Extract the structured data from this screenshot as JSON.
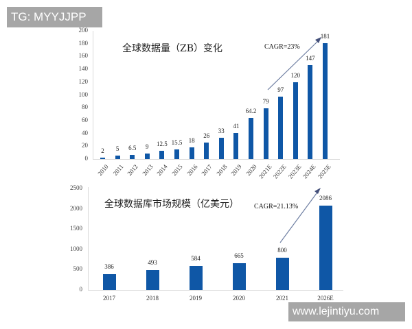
{
  "watermarks": {
    "top_left": "TG: MYYJJPP",
    "bottom_right": "www.lejintiyu.com"
  },
  "colors": {
    "bar": "#0f57a6",
    "arrow": "#6f7fa3",
    "watermark_bg": "#a6a6a6"
  },
  "top_chart": {
    "title": "全球数据量（ZB）变化",
    "cagr": "CAGR=23%",
    "yticks": [
      "200",
      "180",
      "160",
      "140",
      "120",
      "100",
      "80",
      "60",
      "40",
      "20",
      "0"
    ]
  },
  "bottom_chart": {
    "title": "全球数据库市场规模（亿美元）",
    "cagr": "CAGR=21.13%",
    "yticks": [
      "2500",
      "2000",
      "1500",
      "1000",
      "500",
      "0"
    ]
  },
  "chart_data": [
    {
      "type": "bar",
      "title": "全球数据量（ZB）变化",
      "annotation": "CAGR=23%",
      "categories": [
        "2010",
        "2011",
        "2012",
        "2013",
        "2014",
        "2015",
        "2016",
        "2017",
        "2018",
        "2019",
        "2020",
        "2021E",
        "2022E",
        "2023E",
        "2024E",
        "2025E"
      ],
      "values": [
        2,
        5,
        6.5,
        9,
        12.5,
        15.5,
        18,
        26,
        33,
        41,
        64.2,
        79,
        97,
        120,
        147,
        181
      ],
      "labels": [
        "2",
        "5",
        "6.5",
        "9",
        "12.5",
        "15.5",
        "18",
        "26",
        "33",
        "41",
        "64.2",
        "79",
        "97",
        "120",
        "147",
        "181"
      ],
      "xlabel": "",
      "ylabel": "",
      "ylim": [
        0,
        200
      ],
      "yticks_step": 20,
      "grid": false,
      "legend": null
    },
    {
      "type": "bar",
      "title": "全球数据库市场规模（亿美元）",
      "annotation": "CAGR=21.13%",
      "categories": [
        "2017",
        "2018",
        "2019",
        "2020",
        "2021",
        "2026E"
      ],
      "values": [
        386,
        493,
        584,
        665,
        800,
        2086
      ],
      "labels": [
        "386",
        "493",
        "584",
        "665",
        "800",
        "2086"
      ],
      "xlabel": "",
      "ylabel": "",
      "ylim": [
        0,
        2500
      ],
      "yticks_step": 500,
      "grid": false,
      "legend": null
    }
  ]
}
